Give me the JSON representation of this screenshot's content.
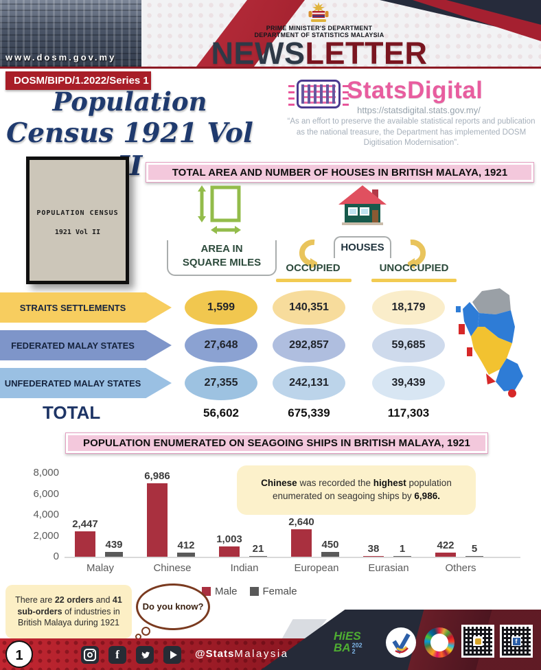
{
  "header": {
    "website": "www.dosm.gov.my",
    "dept_line1": "PRIME MINISTER'S DEPARTMENT",
    "dept_line2": "DEPARTMENT OF STATISTICS MALAYSIA",
    "newsletter_part1": "NEWS",
    "newsletter_part2": "LETTER"
  },
  "issue_badge": "DOSM/BIPD/1.2022/Series 1",
  "masthead_title": {
    "line1": "Population",
    "line2": "Census 1921 Vol II"
  },
  "statsdigital": {
    "name": "StatsDigital",
    "url": "https://statsdigital.stats.gov.my/",
    "quote": "“As an effort to preserve the available statistical reports and publication as the national treasure, the Department has implemented DOSM Digitisation Modernisation”."
  },
  "book_cover": {
    "title": "POPULATION  CENSUS",
    "volume": "1921  Vol II"
  },
  "houses_section": {
    "title": "TOTAL AREA AND NUMBER OF HOUSES IN BRITISH MALAYA, 1921",
    "area_label_line1": "AREA IN",
    "area_label_line2": "SQUARE MILES",
    "houses_label": "HOUSES",
    "occupied_label": "OCCUPIED",
    "unoccupied_label": "UNOCCUPIED",
    "rows": [
      {
        "name": "STRAITS SETTLEMENTS",
        "area": "1,599",
        "occupied": "140,351",
        "unoccupied": "18,179"
      },
      {
        "name": "FEDERATED MALAY STATES",
        "area": "27,648",
        "occupied": "292,857",
        "unoccupied": "59,685"
      },
      {
        "name": "UNFEDERATED MALAY STATES",
        "area": "27,355",
        "occupied": "242,131",
        "unoccupied": "39,439"
      }
    ],
    "total": {
      "label": "TOTAL",
      "area": "56,602",
      "occupied": "675,339",
      "unoccupied": "117,303"
    }
  },
  "chart_data": {
    "type": "bar",
    "title": "POPULATION ENUMERATED ON SEAGOING SHIPS IN BRITISH MALAYA, 1921",
    "categories": [
      "Malay",
      "Chinese",
      "Indian",
      "European",
      "Eurasian",
      "Others"
    ],
    "series": [
      {
        "name": "Male",
        "color": "#A9303F",
        "values": [
          2447,
          6986,
          1003,
          2640,
          38,
          422
        ],
        "labels": [
          "2,447",
          "6,986",
          "1,003",
          "2,640",
          "38",
          "422"
        ]
      },
      {
        "name": "Female",
        "color": "#595959",
        "values": [
          439,
          412,
          21,
          450,
          1,
          5
        ],
        "labels": [
          "439",
          "412",
          "21",
          "450",
          "1",
          "5"
        ]
      }
    ],
    "ylim": [
      0,
      8000
    ],
    "yticks": [
      {
        "v": 8000,
        "label": "8,000"
      },
      {
        "v": 6000,
        "label": "6,000"
      },
      {
        "v": 4000,
        "label": "4,000"
      },
      {
        "v": 2000,
        "label": "2,000"
      },
      {
        "v": 0,
        "label": "0"
      }
    ],
    "grid": false,
    "legend_position": "bottom-center",
    "callout_segments": [
      {
        "t": "Chinese",
        "b": true
      },
      {
        "t": " was recorded the "
      },
      {
        "t": "highest",
        "b": true
      },
      {
        "t": " population enumerated on seagoing ships by "
      },
      {
        "t": "6,986.",
        "b": true
      }
    ]
  },
  "did_you_know": {
    "bubble": "Do you know?",
    "fact_segments": [
      {
        "t": "There are "
      },
      {
        "t": "22 orders",
        "b": true
      },
      {
        "t": " and "
      },
      {
        "t": "41 sub-orders",
        "b": true
      },
      {
        "t": " of industries in British Malaya during 1921"
      }
    ]
  },
  "branding": {
    "hies_line1": "HiES",
    "hies_line2": "BA",
    "hies_year": "2022"
  },
  "footer": {
    "page_number": "1",
    "handle_bold": "@Stats",
    "handle_rest": "Malaysia",
    "facebook_glyph": "f",
    "icons": [
      "instagram",
      "facebook",
      "twitter",
      "youtube"
    ]
  },
  "colors": {
    "accent_red": "#A81E28",
    "navy_title": "#1F3A6E",
    "statsdigital_pink": "#E85D9F",
    "straits_yellow": "#F7CD5F",
    "federated_blue": "#7E95C9",
    "unfederated_blue": "#9AC0E3"
  }
}
